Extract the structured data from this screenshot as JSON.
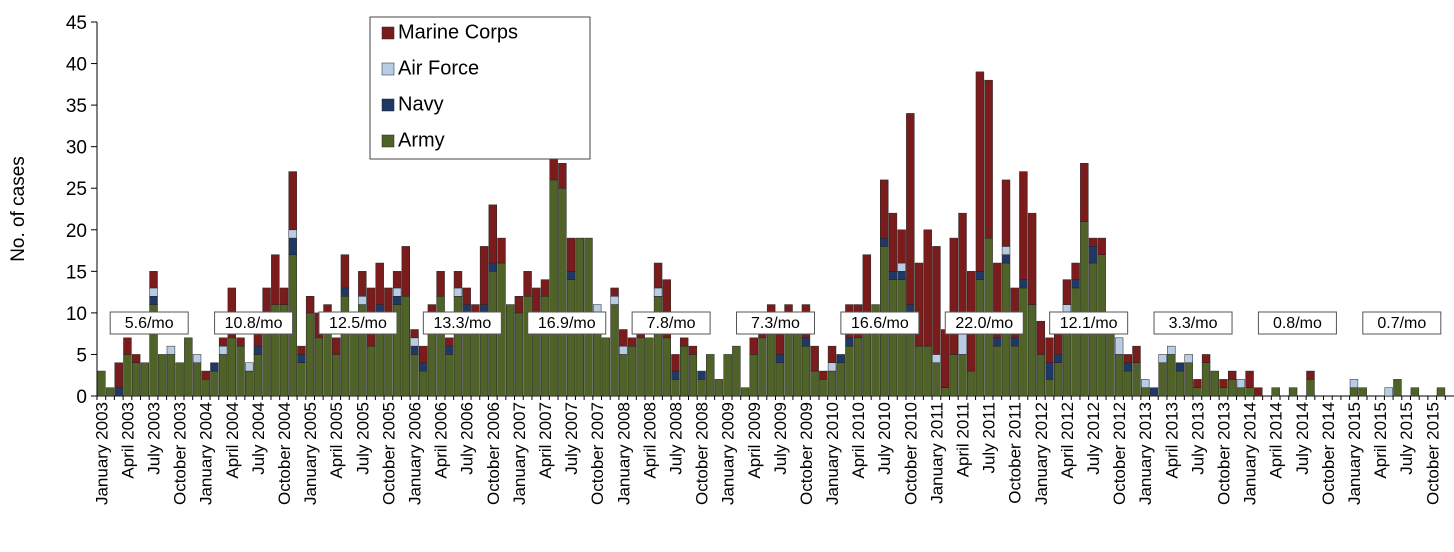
{
  "chart_data": {
    "type": "bar",
    "stacked": true,
    "ylabel": "No. of cases",
    "ylim": [
      0,
      45
    ],
    "yticks": [
      0,
      5,
      10,
      15,
      20,
      25,
      30,
      35,
      40,
      45
    ],
    "legend": "top",
    "categories": [
      "January 2003",
      null,
      null,
      "April 2003",
      null,
      null,
      "July 2003",
      null,
      null,
      "October 2003",
      null,
      null,
      "January 2004",
      null,
      null,
      "April 2004",
      null,
      null,
      "July 2004",
      null,
      null,
      "October 2004",
      null,
      null,
      "January 2005",
      null,
      null,
      "April 2005",
      null,
      null,
      "July 2005",
      null,
      null,
      "October 2005",
      null,
      null,
      "January 2006",
      null,
      null,
      "April 2006",
      null,
      null,
      "July 2006",
      null,
      null,
      "October 2006",
      null,
      null,
      "January 2007",
      null,
      null,
      "April 2007",
      null,
      null,
      "July 2007",
      null,
      null,
      "October 2007",
      null,
      null,
      "January 2008",
      null,
      null,
      "April 2008",
      null,
      null,
      "July 2008",
      null,
      null,
      "October 2008",
      null,
      null,
      "January 2009",
      null,
      null,
      "April 2009",
      null,
      null,
      "July 2009",
      null,
      null,
      "October 2009",
      null,
      null,
      "January 2010",
      null,
      null,
      "April 2010",
      null,
      null,
      "July 2010",
      null,
      null,
      "October 2010",
      null,
      null,
      "January 2011",
      null,
      null,
      "April 2011",
      null,
      null,
      "July 2011",
      null,
      null,
      "October 2011",
      null,
      null,
      "January 2012",
      null,
      null,
      "April 2012",
      null,
      null,
      "July 2012",
      null,
      null,
      "October 2012",
      null,
      null,
      "January 2013",
      null,
      null,
      "April 2013",
      null,
      null,
      "July 2013",
      null,
      null,
      "October 2013",
      null,
      null,
      "January 2014",
      null,
      null,
      "April 2014",
      null,
      null,
      "July 2014",
      null,
      null,
      "October 2014",
      null,
      null,
      "January 2015",
      null,
      null,
      "April 2015",
      null,
      null,
      "July 2015",
      null,
      null,
      "October 2015",
      null,
      null
    ],
    "series": [
      {
        "name": "Army",
        "color": "#4f6228",
        "values": [
          3,
          1,
          0,
          5,
          4,
          4,
          11,
          5,
          5,
          4,
          7,
          4,
          2,
          3,
          5,
          7,
          6,
          3,
          5,
          10,
          11,
          11,
          17,
          4,
          10,
          7,
          8,
          5,
          12,
          8,
          11,
          6,
          10,
          10,
          11,
          12,
          5,
          3,
          8,
          12,
          5,
          12,
          10,
          9,
          10,
          15,
          16,
          11,
          10,
          12,
          10,
          12,
          26,
          25,
          14,
          19,
          19,
          10,
          7,
          11,
          5,
          6,
          7,
          7,
          12,
          7,
          2,
          6,
          5,
          2,
          5,
          2,
          5,
          6,
          1,
          5,
          7,
          8,
          4,
          10,
          8,
          6,
          3,
          2,
          3,
          4,
          6,
          7,
          9,
          11,
          18,
          14,
          14,
          10,
          6,
          6,
          4,
          1,
          5,
          5,
          3,
          14,
          19,
          6,
          16,
          6,
          13,
          11,
          5,
          2,
          4,
          10,
          13,
          21,
          16,
          17,
          10,
          5,
          3,
          4,
          1,
          0,
          4,
          5,
          3,
          4,
          1,
          4,
          3,
          1,
          2,
          1,
          1,
          0,
          0,
          1,
          0,
          1,
          0,
          2,
          0,
          0,
          0,
          0,
          1,
          1,
          0,
          0,
          0,
          2,
          0,
          1,
          0,
          0,
          1,
          0
        ]
      },
      {
        "name": "Navy",
        "color": "#1f3864",
        "values": [
          0,
          0,
          1,
          0,
          0,
          0,
          1,
          0,
          0,
          0,
          0,
          0,
          0,
          1,
          0,
          0,
          0,
          0,
          1,
          0,
          0,
          0,
          2,
          1,
          0,
          0,
          0,
          0,
          1,
          0,
          0,
          0,
          1,
          0,
          1,
          0,
          1,
          1,
          0,
          0,
          1,
          0,
          1,
          0,
          1,
          1,
          0,
          0,
          0,
          0,
          0,
          0,
          0,
          0,
          1,
          0,
          0,
          0,
          0,
          0,
          0,
          0,
          0,
          0,
          0,
          0,
          1,
          0,
          0,
          1,
          0,
          0,
          0,
          0,
          0,
          0,
          0,
          0,
          1,
          0,
          0,
          1,
          0,
          0,
          0,
          1,
          1,
          0,
          0,
          0,
          1,
          1,
          1,
          1,
          0,
          0,
          0,
          0,
          0,
          0,
          0,
          1,
          0,
          1,
          1,
          1,
          1,
          0,
          0,
          2,
          1,
          0,
          1,
          0,
          2,
          0,
          0,
          0,
          1,
          0,
          0,
          1,
          0,
          0,
          1,
          0,
          0,
          0,
          0,
          0,
          0,
          0,
          0,
          0,
          0,
          0,
          0,
          0,
          0,
          0,
          0,
          0,
          0,
          0,
          0,
          0,
          0,
          0,
          0,
          0,
          0,
          0,
          0,
          0,
          0,
          0
        ]
      },
      {
        "name": "Air Force",
        "color": "#b8cce4",
        "values": [
          0,
          0,
          0,
          0,
          0,
          0,
          1,
          0,
          1,
          0,
          0,
          1,
          0,
          0,
          1,
          0,
          0,
          1,
          0,
          0,
          0,
          0,
          1,
          0,
          0,
          0,
          0,
          0,
          0,
          0,
          1,
          0,
          0,
          0,
          1,
          0,
          1,
          0,
          0,
          0,
          0,
          1,
          0,
          0,
          0,
          0,
          0,
          0,
          0,
          0,
          0,
          0,
          0,
          0,
          0,
          0,
          0,
          1,
          0,
          1,
          1,
          0,
          0,
          0,
          1,
          0,
          0,
          0,
          0,
          0,
          0,
          0,
          0,
          0,
          0,
          0,
          0,
          0,
          0,
          0,
          0,
          0,
          0,
          0,
          1,
          0,
          0,
          0,
          0,
          0,
          0,
          0,
          1,
          0,
          0,
          0,
          1,
          0,
          0,
          3,
          0,
          0,
          0,
          0,
          1,
          0,
          0,
          0,
          0,
          0,
          0,
          1,
          0,
          0,
          0,
          0,
          0,
          2,
          0,
          0,
          1,
          0,
          1,
          1,
          0,
          1,
          0,
          0,
          0,
          0,
          0,
          1,
          0,
          0,
          0,
          0,
          0,
          0,
          0,
          0,
          0,
          0,
          0,
          0,
          1,
          0,
          0,
          0,
          1,
          0,
          0,
          0,
          0,
          0,
          0,
          0
        ]
      },
      {
        "name": "Marine Corps",
        "color": "#7b1c1c",
        "values": [
          0,
          0,
          3,
          2,
          1,
          0,
          2,
          0,
          0,
          0,
          0,
          0,
          1,
          0,
          1,
          6,
          1,
          0,
          2,
          3,
          6,
          2,
          7,
          1,
          2,
          3,
          3,
          2,
          4,
          2,
          3,
          7,
          5,
          3,
          2,
          6,
          1,
          2,
          3,
          3,
          1,
          2,
          2,
          2,
          7,
          7,
          3,
          0,
          2,
          3,
          3,
          2,
          3,
          3,
          4,
          0,
          0,
          0,
          0,
          1,
          2,
          1,
          1,
          0,
          3,
          7,
          2,
          1,
          1,
          0,
          0,
          0,
          0,
          0,
          0,
          2,
          3,
          3,
          5,
          1,
          2,
          4,
          3,
          1,
          2,
          0,
          4,
          4,
          8,
          0,
          7,
          7,
          4,
          23,
          10,
          14,
          13,
          7,
          14,
          14,
          12,
          24,
          19,
          9,
          8,
          6,
          13,
          11,
          4,
          3,
          4,
          3,
          2,
          7,
          1,
          2,
          0,
          0,
          1,
          2,
          0,
          0,
          0,
          0,
          0,
          0,
          1,
          1,
          0,
          1,
          1,
          0,
          2,
          1,
          0,
          0,
          0,
          0,
          0,
          1,
          0,
          0,
          0,
          0,
          0,
          0,
          0,
          0,
          0,
          0,
          0,
          0,
          0,
          0,
          0,
          0
        ]
      }
    ],
    "annotations": [
      "5.6/mo",
      "10.8/mo",
      "12.5/mo",
      "13.3/mo",
      "16.9/mo",
      "7.8/mo",
      "7.3/mo",
      "16.6/mo",
      "22.0/mo",
      "12.1/mo",
      "3.3/mo",
      "0.8/mo",
      "0.7/mo"
    ]
  }
}
